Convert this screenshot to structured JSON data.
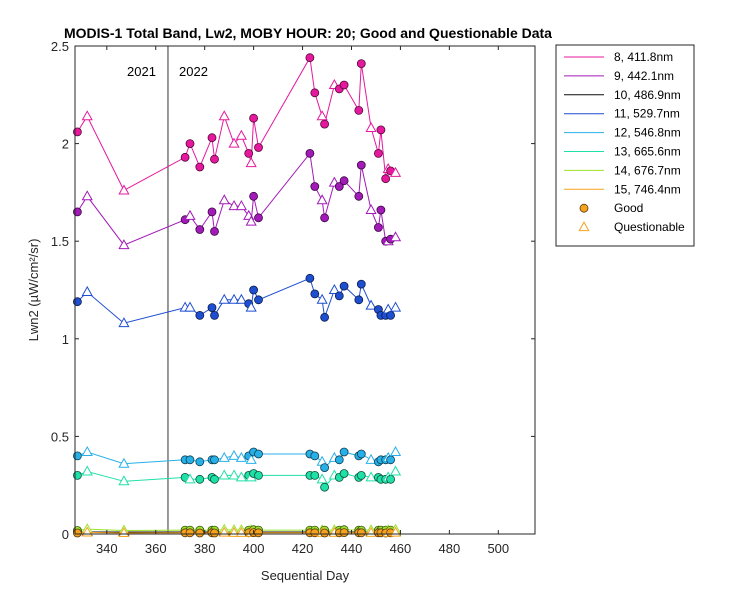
{
  "chart_data": {
    "type": "line",
    "title": "MODIS-1 Total Band, Lw2, MOBY HOUR: 20;  Good and Questionable Data",
    "xlabel": "Sequential Day",
    "ylabel": "Lwn2 (µW/cm²/sr)",
    "xlim": [
      327,
      515
    ],
    "ylim": [
      0,
      2.5
    ],
    "xticks": [
      340,
      360,
      380,
      400,
      420,
      440,
      460,
      480,
      500
    ],
    "yticks": [
      0,
      0.5,
      1,
      1.5,
      2,
      2.5
    ],
    "ytick_labels": [
      "0",
      "0.5",
      "1",
      "1.5",
      "2",
      "2.5"
    ],
    "grid": false,
    "legend_position": "outside-right",
    "year_divider": {
      "x": 365,
      "left_label": "2021",
      "right_label": "2022"
    },
    "x": [
      328,
      332,
      347,
      372,
      374,
      378,
      383,
      384,
      388,
      392,
      395,
      398,
      399,
      400,
      402,
      423,
      425,
      428,
      429,
      433,
      435,
      437,
      443,
      444,
      448,
      451,
      452,
      454,
      455,
      456,
      458
    ],
    "series": [
      {
        "name": "8, 411.8nm",
        "color": "#e6199e",
        "values": [
          2.06,
          2.14,
          1.76,
          1.93,
          2.0,
          1.88,
          2.03,
          1.92,
          2.14,
          2.0,
          2.04,
          1.95,
          1.9,
          2.13,
          1.98,
          2.44,
          2.26,
          2.14,
          2.1,
          2.3,
          2.28,
          2.3,
          2.17,
          2.41,
          2.08,
          1.95,
          2.07,
          1.82,
          1.87,
          1.86,
          1.85
        ],
        "quality": [
          "g",
          "q",
          "q",
          "g",
          "g",
          "g",
          "g",
          "g",
          "q",
          "q",
          "q",
          "g",
          "q",
          "g",
          "g",
          "g",
          "g",
          "q",
          "g",
          "q",
          "g",
          "g",
          "g",
          "g",
          "q",
          "g",
          "g",
          "g",
          "q",
          "g",
          "q"
        ]
      },
      {
        "name": "9, 442.1nm",
        "color": "#a21ab8",
        "values": [
          1.65,
          1.73,
          1.48,
          1.61,
          1.63,
          1.56,
          1.65,
          1.55,
          1.71,
          1.68,
          1.68,
          1.63,
          1.6,
          1.73,
          1.62,
          1.95,
          1.78,
          1.71,
          1.62,
          1.8,
          1.78,
          1.81,
          1.73,
          1.89,
          1.66,
          1.57,
          1.66,
          1.5,
          1.5,
          1.51,
          1.52
        ],
        "quality": [
          "g",
          "q",
          "q",
          "g",
          "q",
          "g",
          "g",
          "g",
          "q",
          "q",
          "q",
          "q",
          "q",
          "g",
          "g",
          "g",
          "g",
          "q",
          "g",
          "q",
          "g",
          "g",
          "g",
          "g",
          "q",
          "g",
          "g",
          "g",
          "q",
          "g",
          "q"
        ]
      },
      {
        "name": "10, 486.9nm",
        "color": "#0d0d0d",
        "values": [
          0.01,
          0.01,
          0.01,
          0.01,
          0.01,
          0.01,
          0.01,
          0.01,
          0.01,
          0.01,
          0.01,
          0.01,
          0.01,
          0.01,
          0.01,
          0.01,
          0.01,
          0.01,
          0.01,
          0.01,
          0.01,
          0.01,
          0.01,
          0.01,
          0.01,
          0.01,
          0.01,
          0.01,
          0.01,
          0.01,
          0.01
        ],
        "quality": [
          "g",
          "q",
          "q",
          "g",
          "g",
          "g",
          "g",
          "g",
          "q",
          "q",
          "q",
          "g",
          "q",
          "g",
          "g",
          "g",
          "g",
          "q",
          "g",
          "q",
          "g",
          "g",
          "g",
          "g",
          "q",
          "g",
          "g",
          "g",
          "q",
          "g",
          "q"
        ]
      },
      {
        "name": "11, 529.7nm",
        "color": "#1f4fd1",
        "values": [
          1.19,
          1.24,
          1.08,
          1.16,
          1.16,
          1.12,
          1.16,
          1.12,
          1.2,
          1.2,
          1.2,
          1.18,
          1.16,
          1.25,
          1.2,
          1.31,
          1.23,
          1.2,
          1.11,
          1.25,
          1.22,
          1.27,
          1.2,
          1.28,
          1.17,
          1.15,
          1.12,
          1.12,
          1.15,
          1.12,
          1.16
        ],
        "quality": [
          "g",
          "q",
          "q",
          "q",
          "q",
          "g",
          "g",
          "g",
          "q",
          "q",
          "q",
          "g",
          "q",
          "g",
          "g",
          "g",
          "g",
          "q",
          "g",
          "q",
          "g",
          "g",
          "g",
          "g",
          "q",
          "g",
          "g",
          "g",
          "q",
          "g",
          "q"
        ]
      },
      {
        "name": "12, 546.8nm",
        "color": "#27b0e8",
        "values": [
          0.4,
          0.42,
          0.36,
          0.38,
          0.38,
          0.37,
          0.38,
          0.38,
          0.39,
          0.4,
          0.39,
          0.4,
          0.38,
          0.42,
          0.41,
          0.41,
          0.4,
          0.37,
          0.34,
          0.39,
          0.38,
          0.42,
          0.4,
          0.41,
          0.38,
          0.37,
          0.38,
          0.38,
          0.39,
          0.38,
          0.42
        ],
        "quality": [
          "g",
          "q",
          "q",
          "g",
          "g",
          "g",
          "g",
          "g",
          "q",
          "q",
          "q",
          "g",
          "q",
          "g",
          "g",
          "g",
          "g",
          "q",
          "g",
          "q",
          "g",
          "g",
          "g",
          "g",
          "q",
          "g",
          "g",
          "g",
          "q",
          "g",
          "q"
        ]
      },
      {
        "name": "13, 665.6nm",
        "color": "#1fe0a6",
        "values": [
          0.3,
          0.32,
          0.27,
          0.29,
          0.28,
          0.28,
          0.29,
          0.28,
          0.3,
          0.3,
          0.29,
          0.3,
          0.29,
          0.31,
          0.3,
          0.3,
          0.3,
          0.28,
          0.24,
          0.3,
          0.29,
          0.31,
          0.29,
          0.3,
          0.29,
          0.29,
          0.28,
          0.28,
          0.29,
          0.28,
          0.32
        ],
        "quality": [
          "g",
          "q",
          "q",
          "g",
          "q",
          "g",
          "g",
          "g",
          "q",
          "q",
          "q",
          "g",
          "q",
          "g",
          "g",
          "g",
          "g",
          "q",
          "g",
          "q",
          "g",
          "g",
          "g",
          "g",
          "q",
          "g",
          "g",
          "g",
          "q",
          "g",
          "q"
        ]
      },
      {
        "name": "14, 676.7nm",
        "color": "#9be32b",
        "values": [
          0.018,
          0.025,
          0.018,
          0.02,
          0.02,
          0.02,
          0.02,
          0.02,
          0.022,
          0.02,
          0.02,
          0.02,
          0.02,
          0.022,
          0.02,
          0.02,
          0.02,
          0.02,
          0.02,
          0.02,
          0.02,
          0.022,
          0.02,
          0.02,
          0.02,
          0.02,
          0.02,
          0.02,
          0.02,
          0.02,
          0.022
        ],
        "quality": [
          "g",
          "q",
          "q",
          "g",
          "g",
          "g",
          "g",
          "g",
          "q",
          "q",
          "q",
          "g",
          "q",
          "g",
          "g",
          "g",
          "g",
          "q",
          "g",
          "q",
          "g",
          "g",
          "g",
          "g",
          "q",
          "g",
          "g",
          "g",
          "q",
          "g",
          "q"
        ]
      },
      {
        "name": "15, 746.4nm",
        "color": "#f5a21e",
        "values": [
          0.005,
          0.008,
          0.005,
          0.006,
          0.006,
          0.005,
          0.006,
          0.005,
          0.007,
          0.006,
          0.006,
          0.006,
          0.006,
          0.007,
          0.006,
          0.006,
          0.006,
          0.006,
          0.005,
          0.006,
          0.006,
          0.007,
          0.006,
          0.006,
          0.006,
          0.006,
          0.006,
          0.005,
          0.006,
          0.006,
          0.007
        ],
        "quality": [
          "g",
          "q",
          "q",
          "g",
          "g",
          "g",
          "g",
          "g",
          "q",
          "q",
          "q",
          "g",
          "q",
          "g",
          "g",
          "g",
          "g",
          "q",
          "g",
          "q",
          "g",
          "g",
          "g",
          "g",
          "q",
          "g",
          "g",
          "g",
          "q",
          "g",
          "q"
        ]
      }
    ],
    "legend_markers": [
      {
        "name": "Good",
        "marker": "circle",
        "color": "#f5a21e"
      },
      {
        "name": "Questionable",
        "marker": "triangle",
        "color": "#f5a21e"
      }
    ]
  }
}
